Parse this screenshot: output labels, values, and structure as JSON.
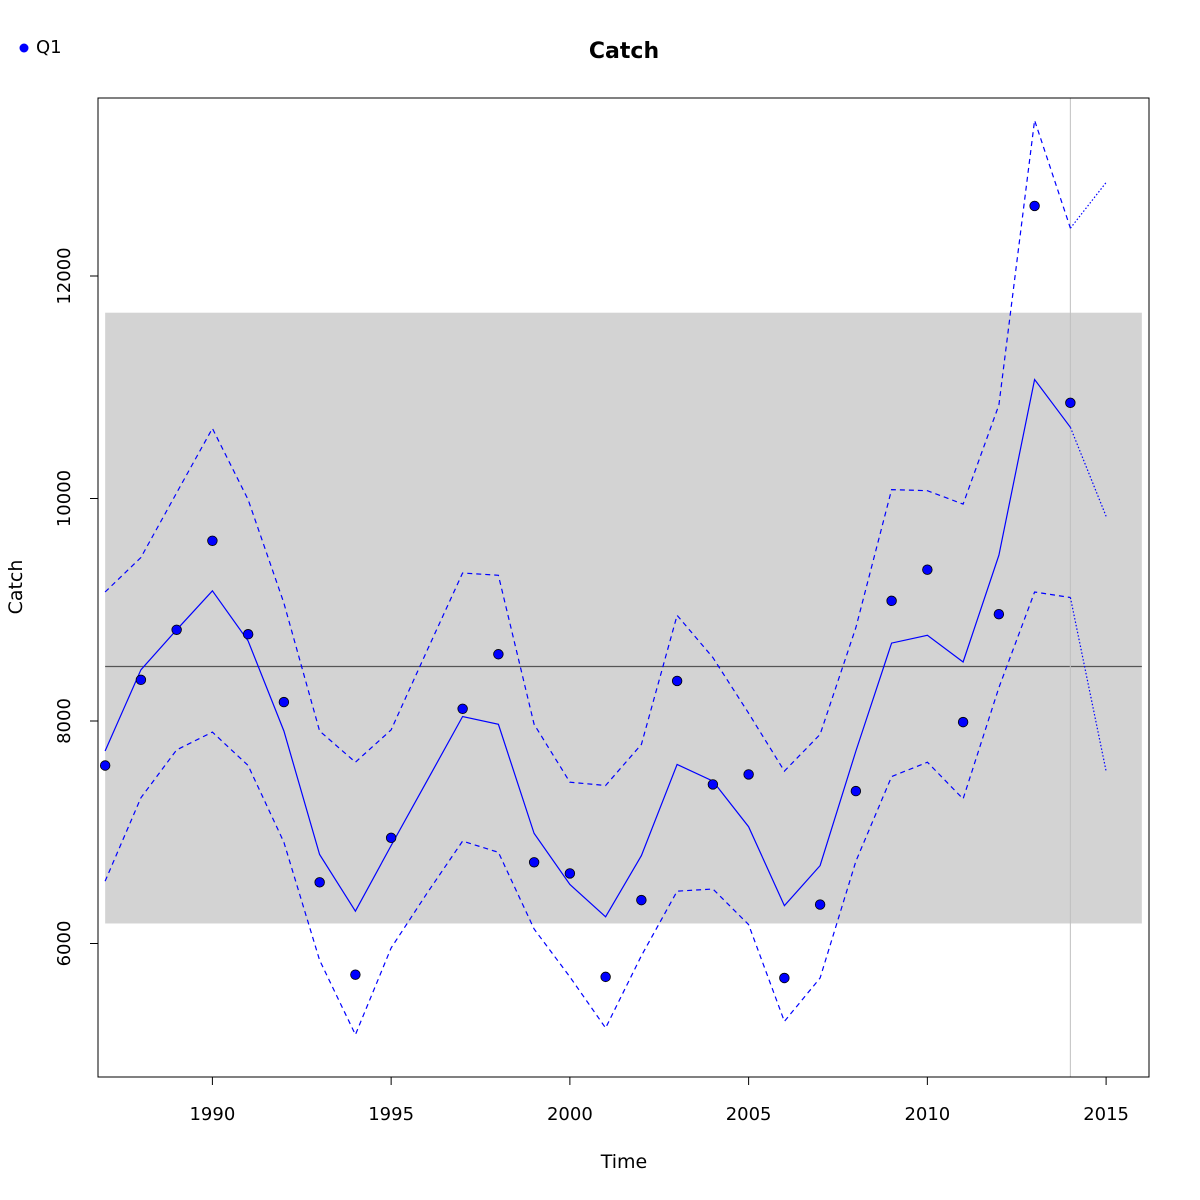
{
  "chart_data": {
    "type": "line",
    "title": "Catch",
    "xlabel": "Time",
    "ylabel": "Catch",
    "xlim": [
      1986.8,
      2016.2
    ],
    "ylim": [
      4800,
      13600
    ],
    "x_ticks": [
      1990,
      1995,
      2000,
      2005,
      2010,
      2015
    ],
    "x_tick_labels": [
      "1990",
      "1995",
      "2000",
      "2005",
      "2010",
      "2015"
    ],
    "y_ticks": [
      6000,
      8000,
      10000,
      12000
    ],
    "y_tick_labels": [
      "6000",
      "8000",
      "10000",
      "12000"
    ],
    "legend": {
      "position": "top-left",
      "entries": [
        "Q1"
      ]
    },
    "grid": false,
    "colors": {
      "series": "#0000ff",
      "band": "#d3d3d3",
      "mean_line": "#555555",
      "divider": "#c0c0c0"
    },
    "band": {
      "x_from": 1987,
      "x_to": 2016,
      "y_from": 6180,
      "y_to": 11670
    },
    "mean_line": {
      "y": 8490
    },
    "divider_x": 2014,
    "observations": {
      "name": "Q1",
      "x": [
        1987,
        1988,
        1989,
        1990,
        1991,
        1992,
        1993,
        1994,
        1995,
        1997,
        1998,
        1999,
        2000,
        2001,
        2002,
        2003,
        2004,
        2005,
        2006,
        2007,
        2008,
        2009,
        2010,
        2011,
        2012,
        2013,
        2014
      ],
      "y": [
        7600,
        8370,
        8820,
        9620,
        8780,
        8170,
        6550,
        5720,
        6950,
        8110,
        8600,
        6730,
        6630,
        5700,
        6390,
        8360,
        7430,
        7520,
        5690,
        6350,
        7370,
        9080,
        9360,
        7990,
        8960,
        12630,
        10860
      ]
    },
    "fit": {
      "x": [
        1987,
        1988,
        1989,
        1990,
        1991,
        1992,
        1993,
        1994,
        1995,
        1996,
        1997,
        1998,
        1999,
        2000,
        2001,
        2002,
        2003,
        2004,
        2005,
        2006,
        2007,
        2008,
        2009,
        2010,
        2011,
        2012,
        2013,
        2014
      ],
      "y": [
        7730,
        8460,
        8820,
        9170,
        8720,
        7910,
        6800,
        6290,
        6880,
        7460,
        8040,
        7970,
        6990,
        6530,
        6240,
        6790,
        7610,
        7460,
        7050,
        6340,
        6700,
        7730,
        8700,
        8770,
        8530,
        9490,
        11070,
        10640
      ]
    },
    "fit_upper": {
      "x": [
        1987,
        1988,
        1989,
        1990,
        1991,
        1992,
        1993,
        1994,
        1995,
        1996,
        1997,
        1998,
        1999,
        2000,
        2001,
        2002,
        2003,
        2004,
        2005,
        2006,
        2007,
        2008,
        2009,
        2010,
        2011,
        2012,
        2013,
        2014
      ],
      "y": [
        9160,
        9470,
        10050,
        10630,
        9990,
        9060,
        7910,
        7630,
        7920,
        8630,
        9330,
        9310,
        7970,
        7450,
        7420,
        7790,
        8950,
        8570,
        8070,
        7550,
        7880,
        8840,
        10080,
        10070,
        9950,
        10840,
        13400,
        12430
      ]
    },
    "fit_lower": {
      "x": [
        1987,
        1988,
        1989,
        1990,
        1991,
        1992,
        1993,
        1994,
        1995,
        1996,
        1997,
        1998,
        1999,
        2000,
        2001,
        2002,
        2003,
        2004,
        2005,
        2006,
        2007,
        2008,
        2009,
        2010,
        2011,
        2012,
        2013,
        2014
      ],
      "y": [
        6560,
        7310,
        7740,
        7900,
        7600,
        6910,
        5850,
        5180,
        5960,
        6450,
        6920,
        6820,
        6130,
        5700,
        5240,
        5890,
        6470,
        6490,
        6170,
        5300,
        5690,
        6740,
        7500,
        7630,
        7300,
        8300,
        9160,
        9110
      ]
    },
    "forecast": {
      "x": [
        2014,
        2015
      ],
      "y": [
        10640,
        9840
      ]
    },
    "forecast_upper": {
      "x": [
        2014,
        2015
      ],
      "y": [
        12430,
        12840
      ]
    },
    "forecast_lower": {
      "x": [
        2014,
        2015
      ],
      "y": [
        9110,
        7550
      ]
    }
  }
}
